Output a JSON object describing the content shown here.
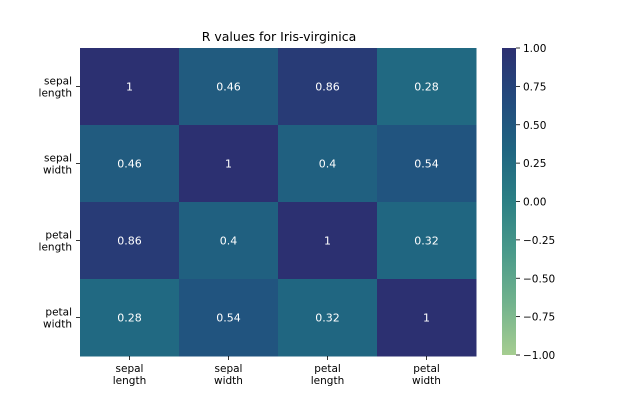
{
  "chart_data": {
    "type": "heatmap",
    "title": "R values for Iris-virginica",
    "rows": [
      [
        "sepal",
        "length"
      ],
      [
        "sepal",
        "width"
      ],
      [
        "petal",
        "length"
      ],
      [
        "petal",
        "width"
      ]
    ],
    "columns": [
      [
        "sepal",
        "length"
      ],
      [
        "sepal",
        "width"
      ],
      [
        "petal",
        "length"
      ],
      [
        "petal",
        "width"
      ]
    ],
    "values": [
      [
        1,
        0.46,
        0.86,
        0.28
      ],
      [
        0.46,
        1,
        0.4,
        0.54
      ],
      [
        0.86,
        0.4,
        1,
        0.32
      ],
      [
        0.28,
        0.54,
        0.32,
        1
      ]
    ],
    "value_labels": [
      [
        "1",
        "0.46",
        "0.86",
        "0.28"
      ],
      [
        "0.46",
        "1",
        "0.4",
        "0.54"
      ],
      [
        "0.86",
        "0.4",
        "1",
        "0.32"
      ],
      [
        "0.28",
        "0.54",
        "0.32",
        "1"
      ]
    ],
    "colorbar": {
      "vmin": -1.0,
      "vmax": 1.0,
      "ticks": [
        1.0,
        0.75,
        0.5,
        0.25,
        0.0,
        -0.25,
        -0.5,
        -0.75,
        -1.0
      ],
      "tick_labels": [
        "1.00",
        "0.75",
        "0.50",
        "0.25",
        "0.00",
        "−0.25",
        "−0.50",
        "−0.75",
        "−1.00"
      ],
      "colormap": "crest",
      "colors_low_to_high": [
        "#a5cd90",
        "#72b38d",
        "#4a9a8a",
        "#2c8085",
        "#1f6581",
        "#234a7d",
        "#2c3071"
      ]
    }
  }
}
